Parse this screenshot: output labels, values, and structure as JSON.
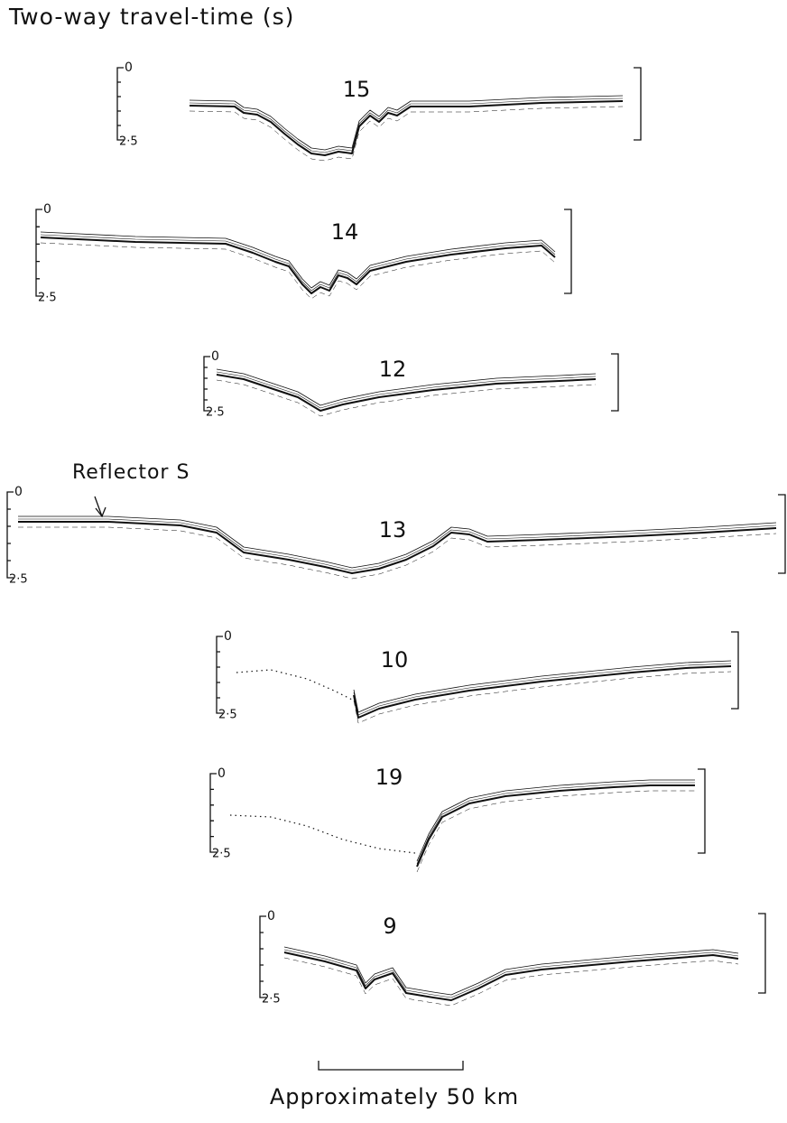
{
  "title": "Two-way travel-time (s)",
  "profiles": [
    {
      "label": "15",
      "scale_top": "0",
      "scale_bottom": "2·5"
    },
    {
      "label": "14",
      "scale_top": "0",
      "scale_bottom": "2·5"
    },
    {
      "label": "12",
      "scale_top": "0",
      "scale_bottom": "2·5"
    },
    {
      "label": "13",
      "scale_top": "0",
      "scale_bottom": "2·5"
    },
    {
      "label": "10",
      "scale_top": "0",
      "scale_bottom": "2·5"
    },
    {
      "label": "19",
      "scale_top": "0",
      "scale_bottom": "2·5"
    },
    {
      "label": "9",
      "scale_top": "0",
      "scale_bottom": "2·5"
    }
  ],
  "annotation": "Reflector S",
  "scale_bar": "Approximately 50 km"
}
